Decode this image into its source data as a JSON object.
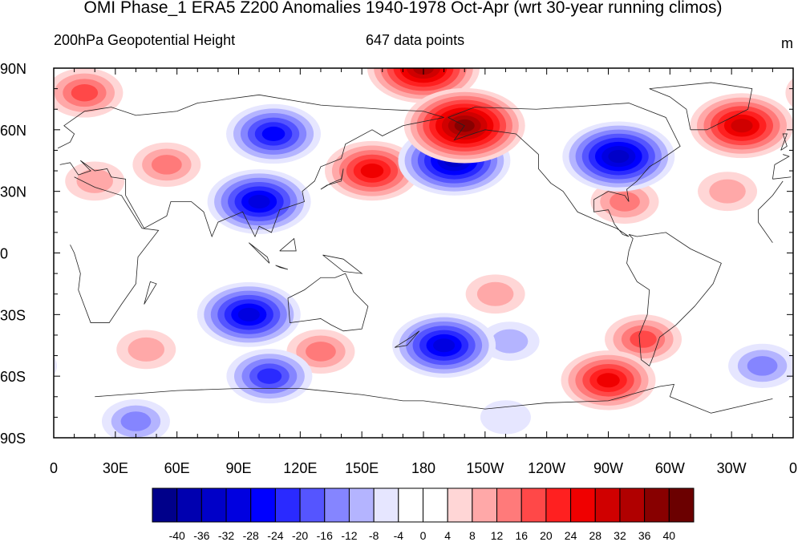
{
  "title": "OMI Phase_1 ERA5 Z200 Anomalies 1940-1978 Oct-Apr (wrt 30-year running climos)",
  "subtitle_left": "200hPa Geopotential Height",
  "subtitle_center": "647 data points",
  "subtitle_right": "m",
  "lat_labels": [
    "90N",
    "60N",
    "30N",
    "0",
    "30S",
    "60S",
    "90S"
  ],
  "lon_labels": [
    "0",
    "30E",
    "60E",
    "90E",
    "120E",
    "150E",
    "180",
    "150W",
    "120W",
    "90W",
    "60W",
    "30W",
    "0"
  ],
  "colorbar": {
    "labels": [
      "-40",
      "-36",
      "-32",
      "-28",
      "-24",
      "-20",
      "-16",
      "-12",
      "-8",
      "-4",
      "0",
      "4",
      "8",
      "12",
      "16",
      "20",
      "24",
      "28",
      "32",
      "36",
      "40"
    ],
    "colors": [
      "#00008a",
      "#0000b0",
      "#0000c8",
      "#0000e0",
      "#0000ff",
      "#2a2aff",
      "#5555ff",
      "#8585ff",
      "#b4b4ff",
      "#e6e6ff",
      "#ffffff",
      "#ffffff",
      "#ffd6d6",
      "#ffa8a8",
      "#ff7a7a",
      "#ff4848",
      "#ff2020",
      "#f00000",
      "#d00000",
      "#b00000",
      "#880000",
      "#6b0000"
    ]
  },
  "anomaly_features": [
    {
      "lon": 180,
      "lat": 90,
      "value": 32
    },
    {
      "lon": 200,
      "lat": 62,
      "value": 36
    },
    {
      "lon": 15,
      "lat": 78,
      "value": 16
    },
    {
      "lon": 335,
      "lat": 62,
      "value": 28
    },
    {
      "lon": 107,
      "lat": 58,
      "value": -24
    },
    {
      "lon": 195,
      "lat": 45,
      "value": -32
    },
    {
      "lon": 275,
      "lat": 47,
      "value": -32
    },
    {
      "lon": 155,
      "lat": 40,
      "value": 24
    },
    {
      "lon": 100,
      "lat": 25,
      "value": -28
    },
    {
      "lon": 55,
      "lat": 43,
      "value": 12
    },
    {
      "lon": 20,
      "lat": 35,
      "value": 8
    },
    {
      "lon": 278,
      "lat": 25,
      "value": 12
    },
    {
      "lon": 328,
      "lat": 30,
      "value": 8
    },
    {
      "lon": 215,
      "lat": -20,
      "value": 8
    },
    {
      "lon": 95,
      "lat": -30,
      "value": -28
    },
    {
      "lon": 190,
      "lat": -45,
      "value": -28
    },
    {
      "lon": 105,
      "lat": -60,
      "value": -20
    },
    {
      "lon": 130,
      "lat": -48,
      "value": 12
    },
    {
      "lon": 45,
      "lat": -47,
      "value": 8
    },
    {
      "lon": 270,
      "lat": -62,
      "value": 24
    },
    {
      "lon": 287,
      "lat": -42,
      "value": 16
    },
    {
      "lon": 222,
      "lat": -43,
      "value": -8
    },
    {
      "lon": 345,
      "lat": -55,
      "value": -12
    },
    {
      "lon": 40,
      "lat": -82,
      "value": -12
    },
    {
      "lon": 220,
      "lat": -80,
      "value": -4
    }
  ]
}
